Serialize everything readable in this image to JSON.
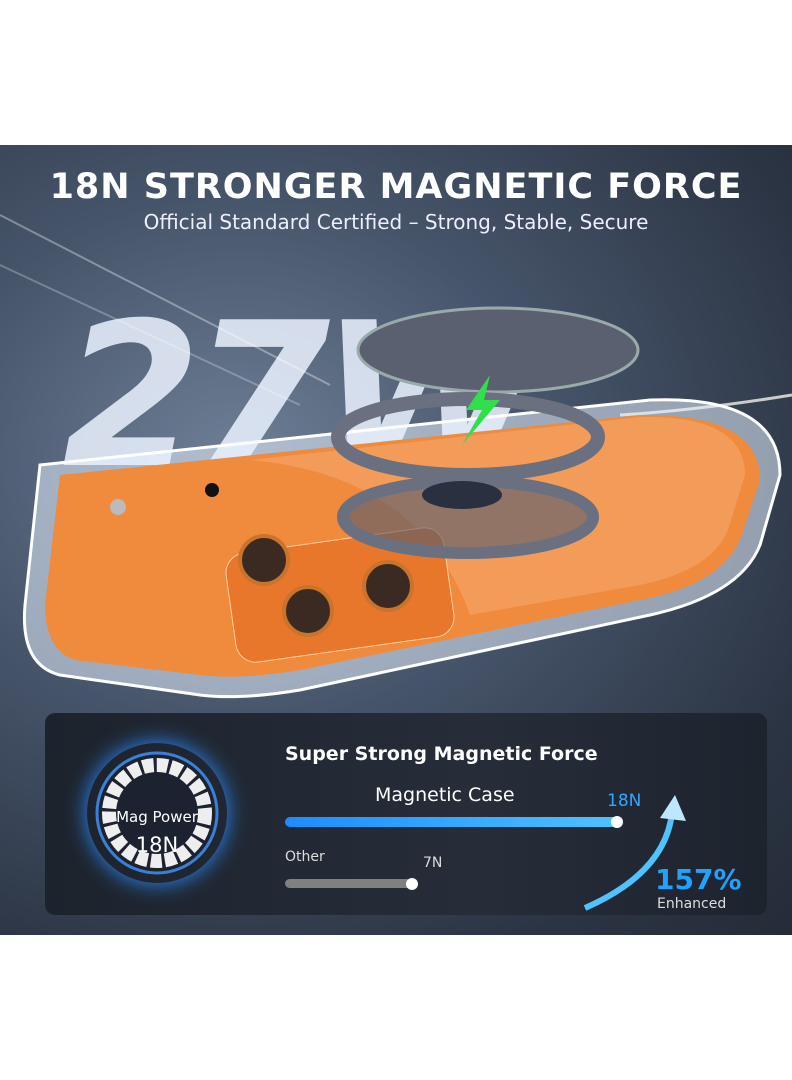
{
  "headline": "18N STRONGER MAGNETIC FORCE",
  "subheadline": "Official Standard Certified – Strong, Stable, Secure",
  "wattage_graphic": "27W",
  "panel": {
    "title": "Super Strong Magnetic Force",
    "ring": {
      "label": "Mag Power",
      "value": "18N"
    },
    "bars": [
      {
        "label": "Magnetic Case",
        "value": "18N",
        "newtons": 18,
        "color": "#1d8cff"
      },
      {
        "label": "Other",
        "value": "7N",
        "newtons": 7,
        "color": "#808080"
      }
    ],
    "improvement": {
      "value": "157%",
      "label": "Enhanced",
      "color": "#1fa3ff"
    }
  },
  "colors": {
    "case": "#f08a3c",
    "background": "#3a4556"
  }
}
